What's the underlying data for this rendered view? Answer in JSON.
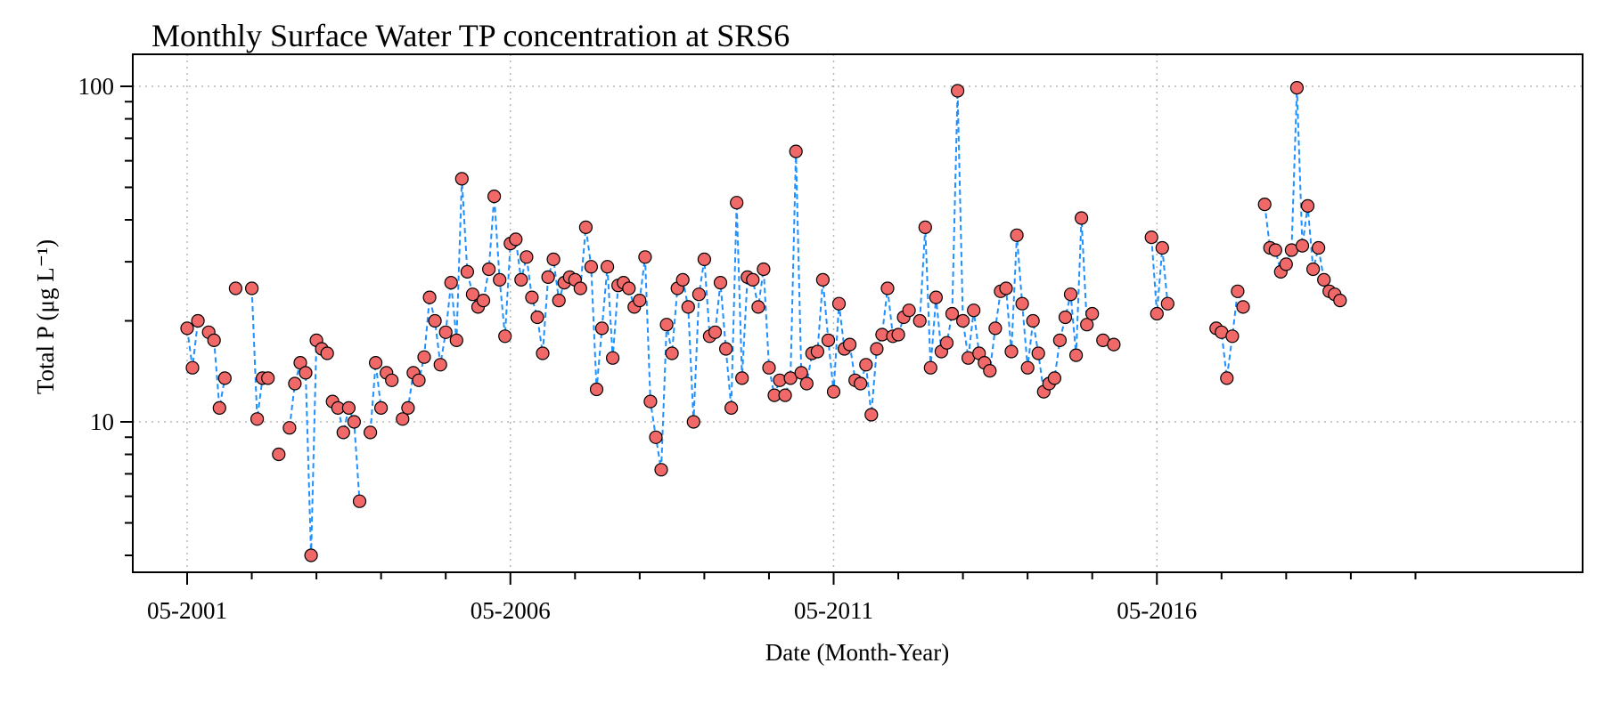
{
  "chart_data": {
    "type": "line",
    "title": "Monthly Surface Water TP concentration at SRS6",
    "xlabel": "Date (Month-Year)",
    "ylabel": "Total P (μg L⁻¹)",
    "y_scale": "log",
    "ylim": [
      4,
      130
    ],
    "xlim": [
      "2000-09",
      "2021-07"
    ],
    "x_ticks": [
      "05-2001",
      "05-2006",
      "05-2011",
      "05-2016"
    ],
    "y_ticks": [
      "10",
      "100"
    ],
    "grid": true,
    "colors": {
      "marker_fill": "#f06868",
      "marker_edge": "#000000",
      "line": "#1e90ff",
      "grid": "#b5b5b5"
    },
    "series": [
      {
        "segments": [
          [
            [
              "2001-05",
              19
            ],
            [
              "2001-06",
              14.5
            ],
            [
              "2001-07",
              20
            ]
          ],
          [
            [
              "2001-09",
              18.5
            ],
            [
              "2001-10",
              17.5
            ],
            [
              "2001-11",
              11
            ],
            [
              "2001-12",
              13.5
            ]
          ],
          [
            [
              "2002-02",
              25
            ]
          ],
          [
            [
              "2002-05",
              25
            ],
            [
              "2002-06",
              10.2
            ],
            [
              "2002-07",
              13.5
            ],
            [
              "2002-08",
              13.5
            ]
          ],
          [
            [
              "2002-10",
              8
            ]
          ],
          [
            [
              "2002-12",
              9.6
            ],
            [
              "2003-01",
              13
            ],
            [
              "2003-02",
              15
            ],
            [
              "2003-03",
              14
            ],
            [
              "2003-04",
              4
            ],
            [
              "2003-05",
              17.5
            ],
            [
              "2003-06",
              16.5
            ],
            [
              "2003-07",
              16
            ]
          ],
          [
            [
              "2003-08",
              11.5
            ],
            [
              "2003-09",
              11
            ],
            [
              "2003-10",
              9.3
            ],
            [
              "2003-11",
              11
            ],
            [
              "2003-12",
              10
            ],
            [
              "2004-01",
              5.8
            ]
          ],
          [
            [
              "2004-03",
              9.3
            ],
            [
              "2004-04",
              15
            ],
            [
              "2004-05",
              11
            ]
          ],
          [
            [
              "2004-06",
              14
            ],
            [
              "2004-07",
              13.3
            ]
          ],
          [
            [
              "2004-09",
              10.2
            ],
            [
              "2004-10",
              11
            ],
            [
              "2004-11",
              14
            ],
            [
              "2004-12",
              13.3
            ],
            [
              "2005-01",
              15.6
            ],
            [
              "2005-02",
              23.5
            ],
            [
              "2005-03",
              20
            ],
            [
              "2005-04",
              14.8
            ],
            [
              "2005-05",
              18.5
            ],
            [
              "2005-06",
              26
            ],
            [
              "2005-07",
              17.5
            ],
            [
              "2005-08",
              53
            ],
            [
              "2005-09",
              28
            ],
            [
              "2005-10",
              24
            ],
            [
              "2005-11",
              22
            ],
            [
              "2005-12",
              23
            ],
            [
              "2006-01",
              28.5
            ],
            [
              "2006-02",
              47
            ],
            [
              "2006-03",
              26.5
            ],
            [
              "2006-04",
              18
            ],
            [
              "2006-05",
              34
            ],
            [
              "2006-06",
              35
            ],
            [
              "2006-07",
              26.5
            ],
            [
              "2006-08",
              31
            ],
            [
              "2006-09",
              23.5
            ],
            [
              "2006-10",
              20.5
            ],
            [
              "2006-11",
              16
            ],
            [
              "2006-12",
              27
            ],
            [
              "2007-01",
              30.5
            ],
            [
              "2007-02",
              23
            ],
            [
              "2007-03",
              26
            ],
            [
              "2007-04",
              27
            ],
            [
              "2007-05",
              26.5
            ],
            [
              "2007-06",
              25
            ],
            [
              "2007-07",
              38
            ],
            [
              "2007-08",
              29
            ],
            [
              "2007-09",
              12.5
            ],
            [
              "2007-10",
              19
            ],
            [
              "2007-11",
              29
            ],
            [
              "2007-12",
              15.5
            ],
            [
              "2008-01",
              25.5
            ],
            [
              "2008-02",
              26
            ],
            [
              "2008-03",
              25
            ],
            [
              "2008-04",
              22
            ],
            [
              "2008-05",
              23
            ],
            [
              "2008-06",
              31
            ],
            [
              "2008-07",
              11.5
            ],
            [
              "2008-08",
              9
            ],
            [
              "2008-09",
              7.2
            ],
            [
              "2008-10",
              19.5
            ],
            [
              "2008-11",
              16
            ],
            [
              "2008-12",
              25
            ],
            [
              "2009-01",
              26.5
            ],
            [
              "2009-02",
              22
            ],
            [
              "2009-03",
              10
            ],
            [
              "2009-04",
              24
            ],
            [
              "2009-05",
              30.5
            ],
            [
              "2009-06",
              18
            ],
            [
              "2009-07",
              18.5
            ],
            [
              "2009-08",
              26
            ],
            [
              "2009-09",
              16.5
            ],
            [
              "2009-10",
              11
            ],
            [
              "2009-11",
              45
            ],
            [
              "2009-12",
              13.5
            ],
            [
              "2010-01",
              27
            ],
            [
              "2010-02",
              26.5
            ],
            [
              "2010-03",
              22
            ],
            [
              "2010-04",
              28.5
            ],
            [
              "2010-05",
              14.5
            ],
            [
              "2010-06",
              12
            ],
            [
              "2010-07",
              13.3
            ],
            [
              "2010-08",
              12
            ],
            [
              "2010-09",
              13.5
            ],
            [
              "2010-10",
              64
            ],
            [
              "2010-11",
              14
            ],
            [
              "2010-12",
              13
            ],
            [
              "2011-01",
              16
            ],
            [
              "2011-02",
              16.2
            ],
            [
              "2011-03",
              26.5
            ],
            [
              "2011-04",
              17.5
            ],
            [
              "2011-05",
              12.3
            ],
            [
              "2011-06",
              22.5
            ],
            [
              "2011-07",
              16.5
            ],
            [
              "2011-08",
              17
            ],
            [
              "2011-09",
              13.3
            ],
            [
              "2011-10",
              13
            ],
            [
              "2011-11",
              14.8
            ],
            [
              "2011-12",
              10.5
            ],
            [
              "2012-01",
              16.5
            ],
            [
              "2012-02",
              18.2
            ],
            [
              "2012-03",
              25
            ],
            [
              "2012-04",
              18
            ],
            [
              "2012-05",
              18.2
            ],
            [
              "2012-06",
              20.5
            ],
            [
              "2012-07",
              21.5
            ]
          ],
          [
            [
              "2012-09",
              20
            ],
            [
              "2012-10",
              38
            ],
            [
              "2012-11",
              14.5
            ],
            [
              "2012-12",
              23.5
            ],
            [
              "2013-01",
              16.2
            ],
            [
              "2013-02",
              17.2
            ],
            [
              "2013-03",
              21
            ],
            [
              "2013-04",
              97
            ],
            [
              "2013-05",
              20
            ],
            [
              "2013-06",
              15.5
            ],
            [
              "2013-07",
              21.5
            ],
            [
              "2013-08",
              16
            ],
            [
              "2013-09",
              15
            ],
            [
              "2013-10",
              14.2
            ],
            [
              "2013-11",
              19
            ],
            [
              "2013-12",
              24.5
            ],
            [
              "2014-01",
              25
            ],
            [
              "2014-02",
              16.2
            ],
            [
              "2014-03",
              36
            ],
            [
              "2014-04",
              22.5
            ],
            [
              "2014-05",
              14.5
            ],
            [
              "2014-06",
              20
            ],
            [
              "2014-07",
              16
            ],
            [
              "2014-08",
              12.3
            ],
            [
              "2014-09",
              13
            ],
            [
              "2014-10",
              13.5
            ],
            [
              "2014-11",
              17.5
            ],
            [
              "2014-12",
              20.5
            ],
            [
              "2015-01",
              24
            ],
            [
              "2015-02",
              15.8
            ],
            [
              "2015-03",
              40.5
            ],
            [
              "2015-04",
              19.5
            ],
            [
              "2015-05",
              21
            ]
          ],
          [
            [
              "2015-07",
              17.5
            ]
          ],
          [
            [
              "2015-09",
              17
            ]
          ],
          [
            [
              "2016-04",
              35.5
            ],
            [
              "2016-05",
              21
            ],
            [
              "2016-06",
              33
            ],
            [
              "2016-07",
              22.5
            ]
          ],
          [
            [
              "2017-04",
              19
            ],
            [
              "2017-05",
              18.5
            ],
            [
              "2017-06",
              13.5
            ],
            [
              "2017-07",
              18
            ],
            [
              "2017-08",
              24.5
            ],
            [
              "2017-09",
              22
            ]
          ],
          [
            [
              "2018-01",
              44.5
            ],
            [
              "2018-02",
              33
            ],
            [
              "2018-03",
              32.5
            ],
            [
              "2018-04",
              28
            ],
            [
              "2018-05",
              29.5
            ],
            [
              "2018-06",
              32.5
            ],
            [
              "2018-07",
              99
            ],
            [
              "2018-08",
              33.5
            ],
            [
              "2018-09",
              44
            ],
            [
              "2018-10",
              28.5
            ],
            [
              "2018-11",
              33
            ],
            [
              "2018-12",
              26.5
            ],
            [
              "2019-01",
              24.5
            ],
            [
              "2019-02",
              24
            ],
            [
              "2019-03",
              23
            ]
          ]
        ]
      }
    ]
  }
}
